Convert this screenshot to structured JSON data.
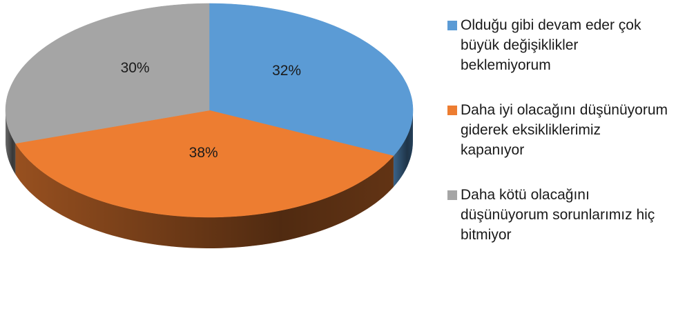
{
  "chart_data": {
    "type": "pie",
    "categories": [
      "Olduğu gibi devam eder çok büyük değişiklikler beklemiyorum",
      "Daha iyi olacağını düşünüyorum giderek eksikliklerimiz kapanıyor",
      "Daha kötü olacağını düşünüyorum sorunlarımız hiç bitmiyor"
    ],
    "values": [
      32,
      38,
      30
    ],
    "value_labels": [
      "32%",
      "38%",
      "30%"
    ],
    "colors": [
      "#5b9bd5",
      "#ed7d31",
      "#a5a5a5"
    ],
    "legend": "right"
  }
}
